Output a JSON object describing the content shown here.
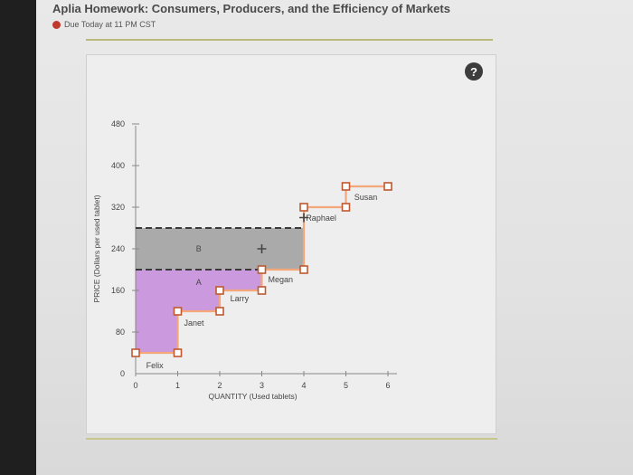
{
  "header": {
    "title": "Aplia Homework: Consumers, Producers, and the Efficiency of Markets",
    "due": "Due Today at 11 PM CST"
  },
  "help": {
    "label": "?"
  },
  "chart_data": {
    "type": "line",
    "xlabel": "QUANTITY (Used tablets)",
    "ylabel": "PRICE (Dollars per used tablet)",
    "x_ticks": [
      "0",
      "1",
      "2",
      "3",
      "4",
      "5",
      "6"
    ],
    "y_ticks": [
      "0",
      "80",
      "160",
      "240",
      "320",
      "400",
      "480"
    ],
    "xlim": [
      0,
      6
    ],
    "ylim": [
      0,
      480
    ],
    "supply_steps": [
      {
        "x1": 0,
        "x2": 1,
        "y": 40
      },
      {
        "x1": 1,
        "x2": 2,
        "y": 120
      },
      {
        "x1": 2,
        "x2": 3,
        "y": 160
      },
      {
        "x1": 3,
        "x2": 4,
        "y": 200
      },
      {
        "x1": 4,
        "x2": 5,
        "y": 320
      },
      {
        "x1": 5,
        "x2": 6,
        "y": 360
      }
    ],
    "sellers": [
      {
        "name": "Felix",
        "x": 0.5,
        "y": 40
      },
      {
        "name": "Janet",
        "x": 1.5,
        "y": 120
      },
      {
        "name": "Larry",
        "x": 2.5,
        "y": 160
      },
      {
        "name": "Megan",
        "x": 3.5,
        "y": 200
      },
      {
        "name": "Raphael",
        "x": 4.5,
        "y": 320
      },
      {
        "name": "Susan",
        "x": 5.5,
        "y": 360
      }
    ],
    "price_lines": [
      200,
      280
    ],
    "areas": [
      {
        "label": "A",
        "price": 200,
        "color": "#c58fdc"
      },
      {
        "label": "B",
        "price": 280,
        "color": "#9e9e9e"
      }
    ],
    "colors": {
      "supply": "#f3a77b",
      "marker": "#c0592f",
      "dashed": "#3a3a3a"
    }
  }
}
